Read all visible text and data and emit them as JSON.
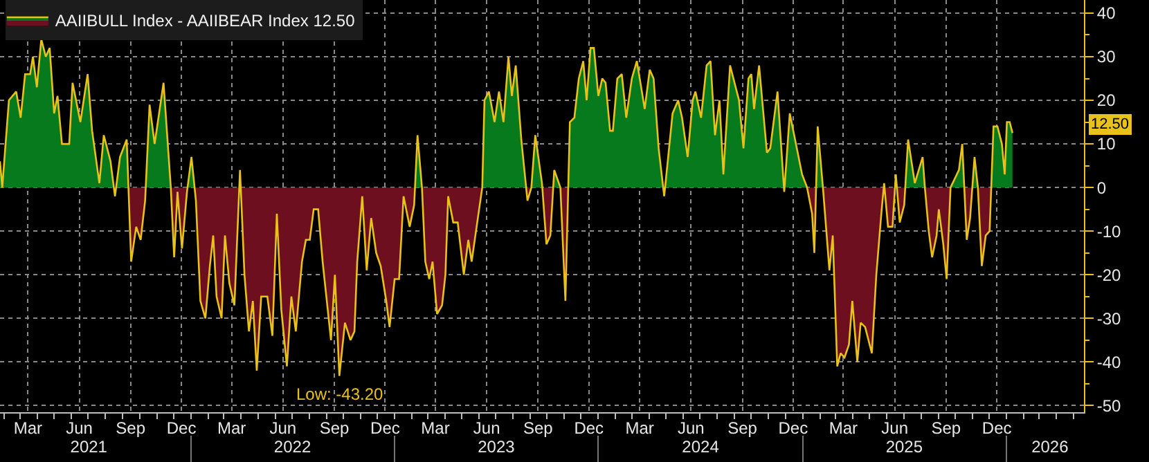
{
  "chart_data": {
    "type": "area",
    "x": [
      "2021-01-24",
      "2021-01-28",
      "2021-02-09",
      "2021-02-22",
      "2021-03-02",
      "2021-03-10",
      "2021-03-19",
      "2021-03-24",
      "2021-03-31",
      "2021-04-08",
      "2021-04-16",
      "2021-04-23",
      "2021-05-01",
      "2021-05-07",
      "2021-05-15",
      "2021-05-28",
      "2021-06-03",
      "2021-06-17",
      "2021-06-30",
      "2021-07-08",
      "2021-07-21",
      "2021-07-29",
      "2021-08-10",
      "2021-08-18",
      "2021-08-27",
      "2021-09-08",
      "2021-09-16",
      "2021-09-25",
      "2021-10-03",
      "2021-10-11",
      "2021-10-19",
      "2021-10-28",
      "2021-11-05",
      "2021-11-13",
      "2021-11-26",
      "2021-12-02",
      "2021-12-08",
      "2021-12-16",
      "2021-12-25",
      "2022-01-02",
      "2022-01-10",
      "2022-01-18",
      "2022-01-27",
      "2022-02-04",
      "2022-02-10",
      "2022-02-16",
      "2022-02-25",
      "2022-03-03",
      "2022-03-11",
      "2022-03-20",
      "2022-03-30",
      "2022-04-07",
      "2022-04-15",
      "2022-04-22",
      "2022-04-29",
      "2022-05-07",
      "2022-05-18",
      "2022-05-27",
      "2022-06-04",
      "2022-06-12",
      "2022-06-22",
      "2022-06-30",
      "2022-07-08",
      "2022-07-19",
      "2022-07-26",
      "2022-08-02",
      "2022-08-09",
      "2022-08-17",
      "2022-08-25",
      "2022-09-09",
      "2022-09-16",
      "2022-09-24",
      "2022-10-04",
      "2022-10-14",
      "2022-10-21",
      "2022-10-26",
      "2022-11-04",
      "2022-11-12",
      "2022-11-20",
      "2022-11-29",
      "2022-12-07",
      "2022-12-17",
      "2022-12-23",
      "2023-01-01",
      "2023-01-09",
      "2023-01-17",
      "2023-01-28",
      "2023-02-05",
      "2023-02-11",
      "2023-02-19",
      "2023-02-25",
      "2023-03-04",
      "2023-03-10",
      "2023-03-18",
      "2023-03-27",
      "2023-04-02",
      "2023-04-07",
      "2023-04-16",
      "2023-04-24",
      "2023-05-05",
      "2023-05-13",
      "2023-05-19",
      "2023-05-29",
      "2023-06-07",
      "2023-06-11",
      "2023-06-19",
      "2023-06-29",
      "2023-07-07",
      "2023-07-15",
      "2023-07-24",
      "2023-07-30",
      "2023-08-06",
      "2023-08-16",
      "2023-08-27",
      "2023-09-03",
      "2023-09-10",
      "2023-09-22",
      "2023-09-30",
      "2023-10-07",
      "2023-10-14",
      "2023-10-25",
      "2023-11-03",
      "2023-11-11",
      "2023-11-19",
      "2023-11-27",
      "2023-12-05",
      "2023-12-11",
      "2023-12-18",
      "2023-12-24",
      "2024-01-01",
      "2024-01-08",
      "2024-01-14",
      "2024-01-22",
      "2024-01-27",
      "2024-02-04",
      "2024-02-12",
      "2024-02-20",
      "2024-03-01",
      "2024-03-10",
      "2024-03-19",
      "2024-03-24",
      "2024-04-02",
      "2024-04-09",
      "2024-04-18",
      "2024-04-28",
      "2024-05-13",
      "2024-05-23",
      "2024-05-30",
      "2024-06-09",
      "2024-06-18",
      "2024-06-23",
      "2024-07-03",
      "2024-07-13",
      "2024-07-20",
      "2024-07-28",
      "2024-08-05",
      "2024-08-12",
      "2024-08-24",
      "2024-09-09",
      "2024-09-17",
      "2024-09-26",
      "2024-10-01",
      "2024-10-06",
      "2024-10-15",
      "2024-10-29",
      "2024-11-04",
      "2024-11-17",
      "2024-11-29",
      "2024-12-09",
      "2024-12-20",
      "2024-12-31",
      "2025-01-09",
      "2025-01-18",
      "2025-01-22",
      "2025-01-28",
      "2025-02-07",
      "2025-02-18",
      "2025-02-24",
      "2025-03-04",
      "2025-03-10",
      "2025-03-17",
      "2025-03-25",
      "2025-03-31",
      "2025-04-09",
      "2025-04-15",
      "2025-04-23",
      "2025-05-05",
      "2025-05-13",
      "2025-05-22",
      "2025-05-27",
      "2025-06-03",
      "2025-06-11",
      "2025-06-17",
      "2025-06-24",
      "2025-07-02",
      "2025-07-09",
      "2025-07-21",
      "2025-08-04",
      "2025-08-08",
      "2025-08-15",
      "2025-08-21",
      "2025-08-29",
      "2025-09-02",
      "2025-09-10",
      "2025-09-16",
      "2025-09-23",
      "2025-10-08",
      "2025-10-14",
      "2025-10-22",
      "2025-10-28",
      "2025-11-05",
      "2025-11-11",
      "2025-11-18",
      "2025-11-25",
      "2025-12-02",
      "2025-12-09",
      "2025-12-16",
      "2025-12-24",
      "2025-12-29",
      "2026-01-02",
      "2026-01-07",
      "2026-01-12"
    ],
    "series": [
      {
        "name": "AAIIBULL Index - AAIIBEAR Index 12.50",
        "color": "#e8c21a",
        "values": [
          6,
          0,
          20,
          22,
          16,
          26,
          26,
          30,
          23,
          34,
          30,
          32,
          17,
          21,
          10,
          10,
          24,
          15,
          26,
          13,
          1,
          12,
          6,
          -2,
          7,
          11,
          -17,
          -9,
          -12,
          -3,
          19,
          10,
          17,
          24,
          0,
          -16,
          -1,
          -14,
          -1,
          7,
          -3,
          -26,
          -30,
          -18,
          -11,
          -25,
          -30,
          -11,
          -22,
          -27,
          4,
          -20,
          -33,
          -26,
          -42,
          -25,
          -25,
          -34,
          -6,
          -28,
          -41,
          -25,
          -33,
          -17,
          -12,
          -12,
          -5,
          -5,
          -17,
          -35,
          -20,
          -43.2,
          -31,
          -35,
          -33,
          -17,
          -2,
          -19,
          -7,
          -15,
          -18,
          -26,
          -32,
          -21,
          -21,
          -2,
          -9,
          -4,
          12,
          0,
          -17,
          -21,
          -17,
          -29,
          -27,
          -20,
          -2,
          -8,
          -8,
          -20,
          -12,
          -17,
          -8,
          0,
          20,
          22,
          15,
          22,
          15,
          30,
          21,
          28,
          11,
          -3,
          0,
          12,
          1,
          -13,
          -11,
          4,
          0,
          -26,
          15,
          16,
          25,
          29,
          20,
          32,
          32,
          21,
          25,
          24,
          13,
          13,
          25,
          26,
          16,
          25,
          29,
          22,
          18,
          27,
          25,
          9,
          -2,
          17,
          20,
          16,
          7,
          20,
          22,
          16,
          28,
          29,
          12,
          20,
          3,
          28,
          20,
          9,
          25,
          26,
          18,
          28,
          8,
          9,
          22,
          -1,
          17,
          10,
          3,
          0,
          -6,
          -15,
          14,
          -1,
          -19,
          -11,
          -41,
          -38,
          -39,
          -36,
          -26,
          -40,
          -31,
          -32,
          -38,
          -20,
          -6,
          1,
          -9,
          -9,
          3,
          -8,
          -4,
          11,
          1,
          7,
          0,
          -10,
          -16,
          -11,
          -5,
          -13,
          -21,
          0,
          4,
          10,
          -12,
          -7,
          7,
          0,
          -18,
          -11,
          -10,
          14,
          14,
          10,
          3,
          15,
          15,
          12.5
        ]
      }
    ],
    "xlim": [
      "2021-01-24",
      "2026-05-20"
    ],
    "xticks": [
      {
        "value": "2021-03-15",
        "label": "Mar"
      },
      {
        "value": "2021-06-15",
        "label": "Jun"
      },
      {
        "value": "2021-09-15",
        "label": "Sep"
      },
      {
        "value": "2021-12-15",
        "label": "Dec"
      },
      {
        "value": "2022-03-15",
        "label": "Mar"
      },
      {
        "value": "2022-06-15",
        "label": "Jun"
      },
      {
        "value": "2022-09-15",
        "label": "Sep"
      },
      {
        "value": "2022-12-15",
        "label": "Dec"
      },
      {
        "value": "2023-03-15",
        "label": "Mar"
      },
      {
        "value": "2023-06-15",
        "label": "Jun"
      },
      {
        "value": "2023-09-15",
        "label": "Sep"
      },
      {
        "value": "2023-12-15",
        "label": "Dec"
      },
      {
        "value": "2024-03-15",
        "label": "Mar"
      },
      {
        "value": "2024-06-15",
        "label": "Jun"
      },
      {
        "value": "2024-09-15",
        "label": "Sep"
      },
      {
        "value": "2024-12-15",
        "label": "Dec"
      },
      {
        "value": "2025-03-15",
        "label": "Mar"
      },
      {
        "value": "2025-06-15",
        "label": "Jun"
      },
      {
        "value": "2025-09-15",
        "label": "Sep"
      },
      {
        "value": "2025-12-15",
        "label": "Dec"
      }
    ],
    "x2lim": [
      "2021-01-24",
      "2026-05-20"
    ],
    "x2ticks": [
      {
        "value": "2021-07-02",
        "label": "2021"
      },
      {
        "value": "2022-07-02",
        "label": "2022"
      },
      {
        "value": "2023-07-02",
        "label": "2023"
      },
      {
        "value": "2024-07-02",
        "label": "2024"
      },
      {
        "value": "2025-07-02",
        "label": "2025"
      },
      {
        "value": "2026-03-20",
        "label": "2026"
      }
    ],
    "ylim": [
      -51.5,
      43
    ],
    "yticks": [
      -50,
      -40,
      -30,
      -20,
      -10,
      0,
      10,
      20,
      30,
      40
    ],
    "grid": true,
    "legend": "top left",
    "marker": "none",
    "line_style": "solid",
    "annotations": [
      {
        "text": "Low: -43.20",
        "x": "2022-09-24",
        "y": -43.2
      },
      "12.50"
    ]
  }
}
